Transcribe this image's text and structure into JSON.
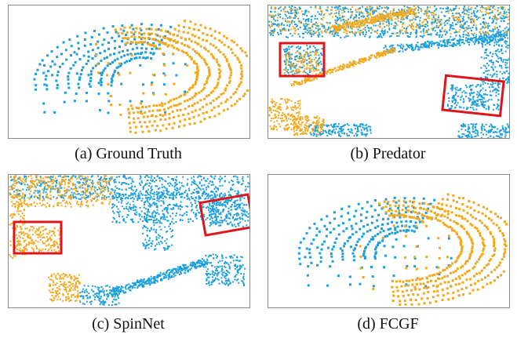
{
  "colors": {
    "source_cloud": "#1a9fdc",
    "target_cloud": "#f2a81d",
    "highlight_box": "#e0141b",
    "panel_border": "#8a8a8a"
  },
  "panels": [
    {
      "caption": "(a) Ground Truth"
    },
    {
      "caption": "(b) Predator"
    },
    {
      "caption": "(c) SpinNet"
    },
    {
      "caption": "(d) FCGF"
    }
  ]
}
